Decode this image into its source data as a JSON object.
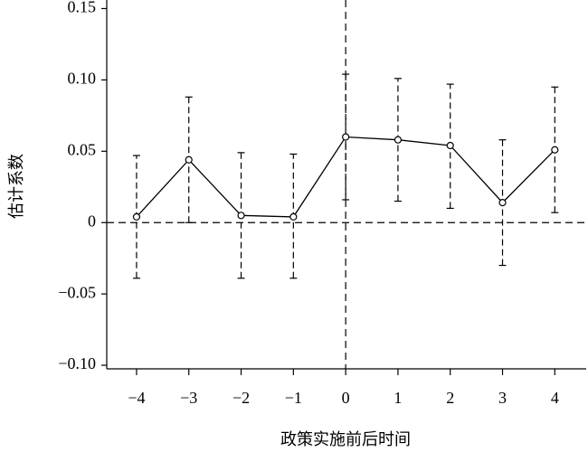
{
  "chart_data": {
    "type": "errorbar-line",
    "x_label": "政策实施前后时间",
    "y_label": "估计系数",
    "x": [
      -4,
      -3,
      -2,
      -1,
      0,
      1,
      2,
      3,
      4
    ],
    "values": [
      0.004,
      0.044,
      0.005,
      0.004,
      0.06,
      0.058,
      0.054,
      0.014,
      0.051
    ],
    "ci_lower": [
      -0.039,
      0.0,
      -0.039,
      -0.039,
      0.016,
      0.015,
      0.01,
      -0.03,
      0.007
    ],
    "ci_upper": [
      0.047,
      0.088,
      0.049,
      0.048,
      0.104,
      0.101,
      0.097,
      0.058,
      0.095
    ],
    "color": "#000000",
    "xlim": [
      -4.57,
      4.6
    ],
    "xticks": [
      {
        "value": -4,
        "label": "−4"
      },
      {
        "value": -3,
        "label": "−3"
      },
      {
        "value": -2,
        "label": "−2"
      },
      {
        "value": -1,
        "label": "−1"
      },
      0,
      1,
      2,
      3,
      4
    ],
    "ylim": [
      -0.1025,
      0.156
    ],
    "yticks": [
      {
        "value": -0.1,
        "label": "−0.10"
      },
      {
        "value": -0.05,
        "label": "−0.05"
      },
      0,
      0.05,
      {
        "value": 0.1,
        "label": "0.10"
      },
      0.15
    ],
    "hline": 0,
    "vline": 0
  }
}
